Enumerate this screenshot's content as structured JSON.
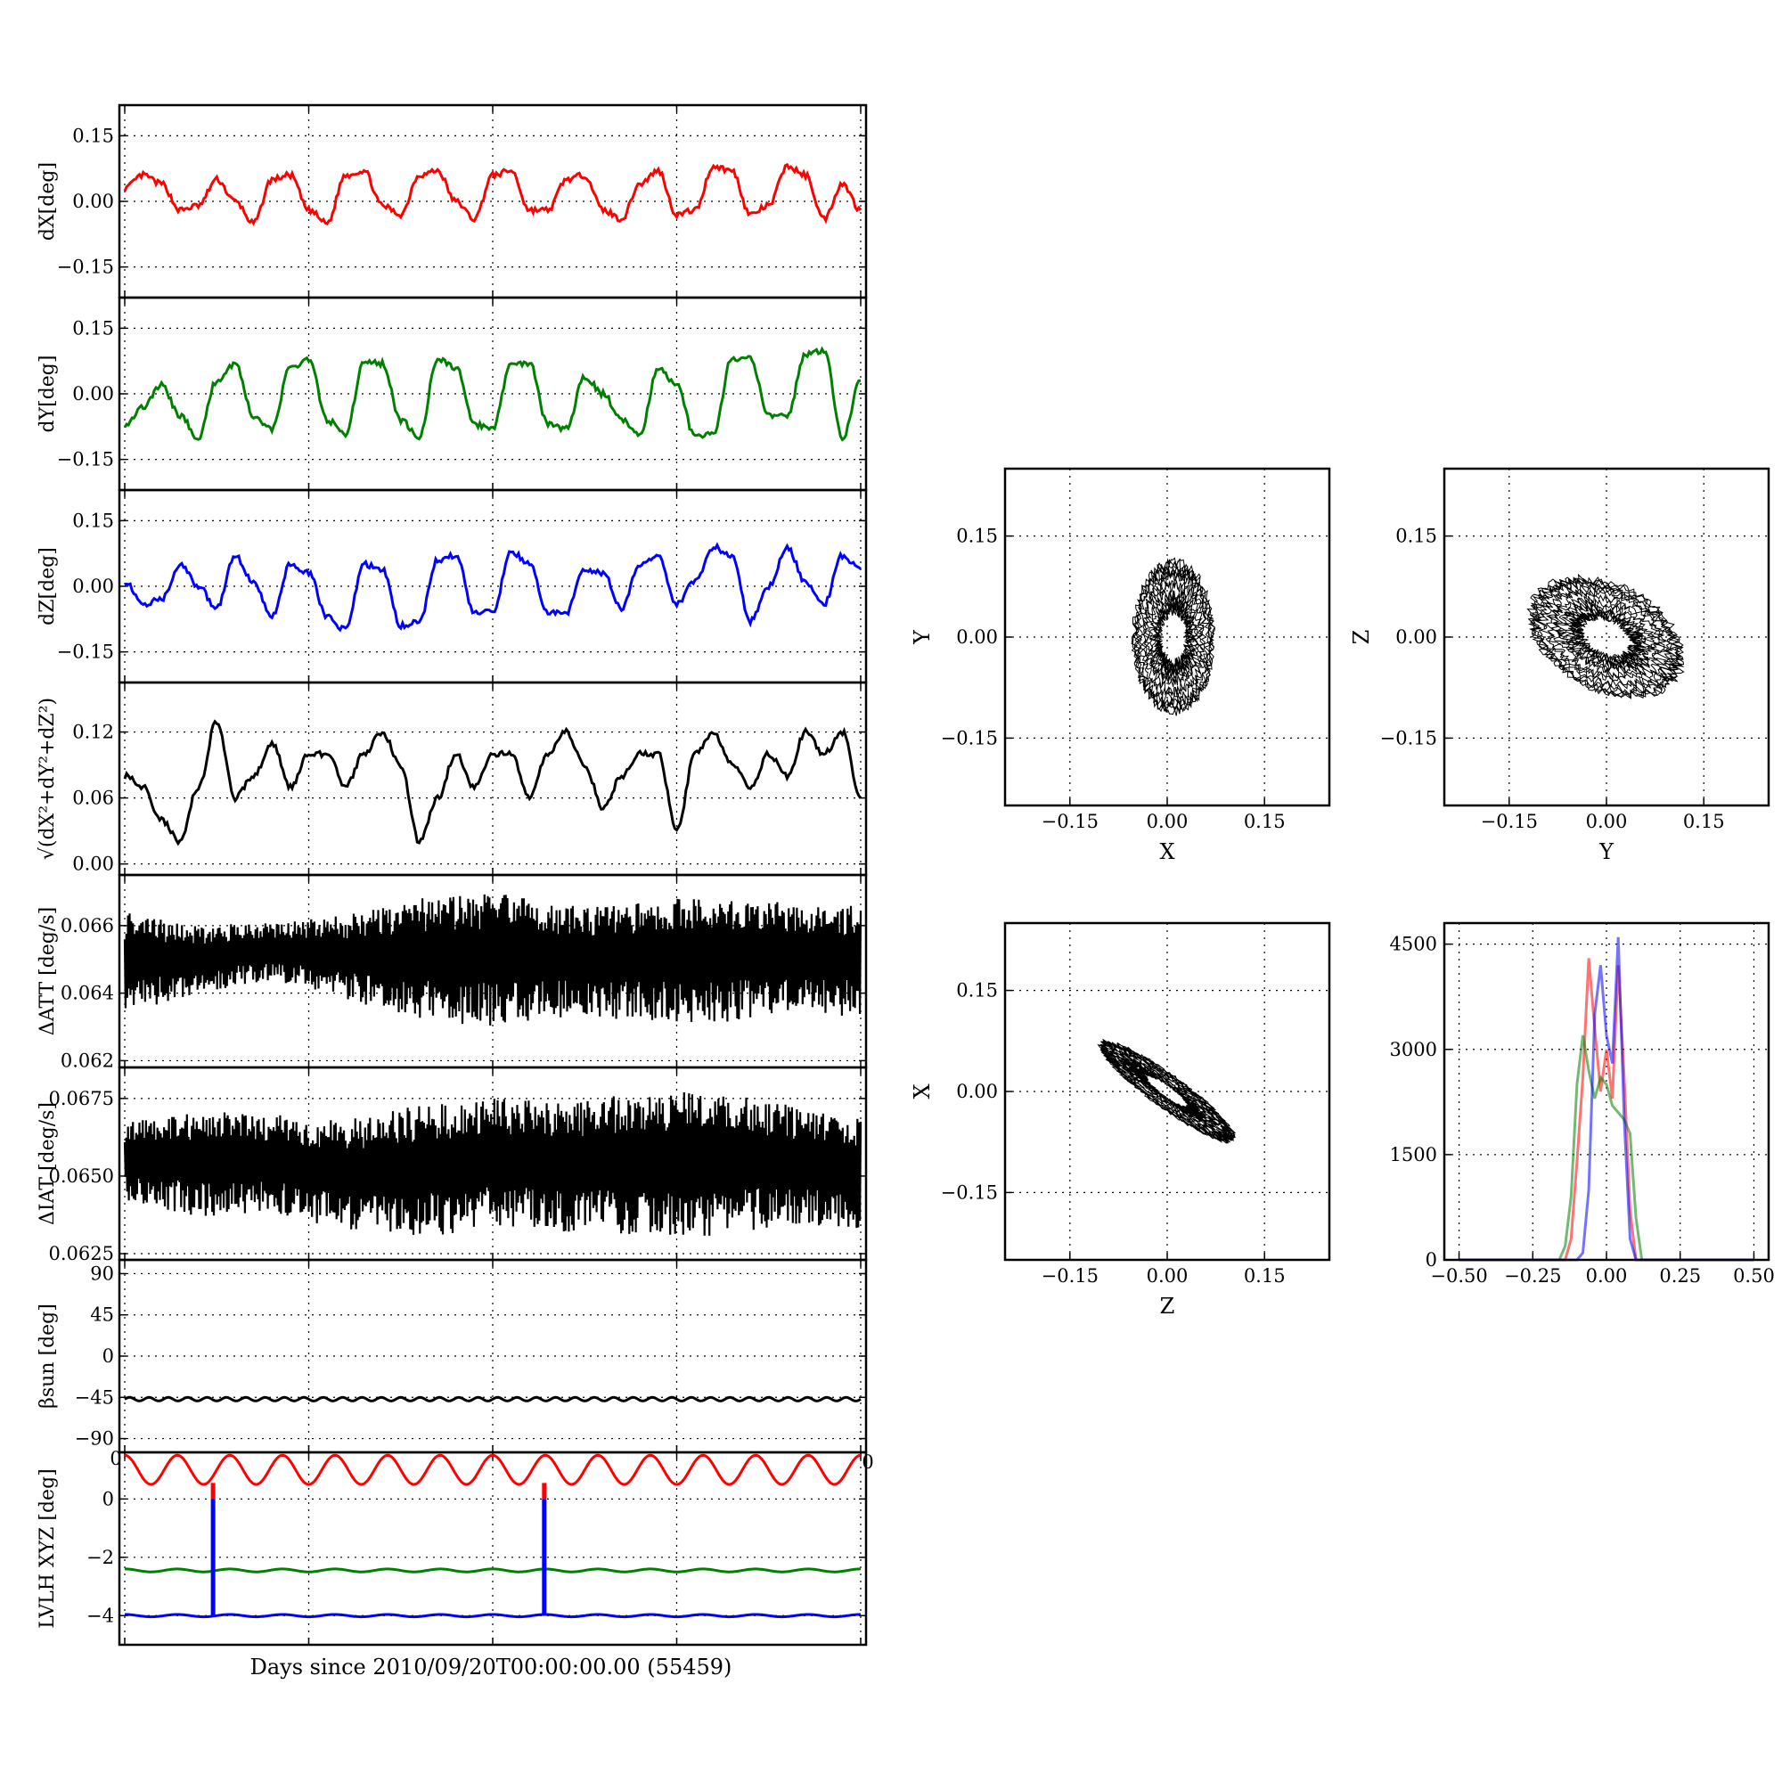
{
  "figure": {
    "xlabel": "Days since 2010/09/20T00:00:00.00 (55459)",
    "edge_tick_labels": [
      "0",
      "0",
      "0"
    ]
  },
  "chart_data": [
    {
      "type": "line",
      "id": "dX",
      "ylabel": "dX[deg]",
      "ylim": [
        -0.22,
        0.22
      ],
      "yticks": [
        0.15,
        0.0,
        -0.15
      ],
      "ytick_labels": [
        "0.15",
        "0.00",
        "−0.15"
      ],
      "grid": true,
      "color": "#ff0000",
      "x": [
        0,
        0.5,
        1,
        1.5,
        2,
        2.5,
        3,
        3.5,
        4,
        4.5,
        5,
        5.5,
        6,
        6.5,
        7,
        7.5,
        8,
        8.5,
        9,
        9.5,
        10,
        10.5,
        11,
        11.5,
        12,
        12.5,
        13,
        13.5,
        14,
        14.5,
        15,
        15.5,
        16,
        16.5,
        17,
        17.5,
        18,
        18.5,
        19,
        19.5,
        20
      ],
      "series": [
        {
          "values": [
            0.03,
            0.06,
            0.04,
            -0.02,
            -0.01,
            0.05,
            0.0,
            -0.05,
            0.05,
            0.06,
            -0.02,
            -0.05,
            0.06,
            0.07,
            -0.01,
            -0.03,
            0.06,
            0.07,
            0.0,
            -0.04,
            0.06,
            0.07,
            -0.02,
            -0.02,
            0.05,
            0.06,
            -0.02,
            -0.04,
            0.04,
            0.07,
            -0.03,
            -0.02,
            0.08,
            0.07,
            -0.03,
            -0.01,
            0.08,
            0.06,
            -0.04,
            0.04,
            -0.02
          ]
        }
      ]
    },
    {
      "type": "line",
      "id": "dY",
      "ylabel": "dY[deg]",
      "ylim": [
        -0.22,
        0.22
      ],
      "yticks": [
        0.15,
        0.0,
        -0.15
      ],
      "ytick_labels": [
        "0.15",
        "0.00",
        "−0.15"
      ],
      "grid": true,
      "color": "#008000",
      "x": [
        0,
        0.5,
        1,
        1.5,
        2,
        2.5,
        3,
        3.5,
        4,
        4.5,
        5,
        5.5,
        6,
        6.5,
        7,
        7.5,
        8,
        8.5,
        9,
        9.5,
        10,
        10.5,
        11,
        11.5,
        12,
        12.5,
        13,
        13.5,
        14,
        14.5,
        15,
        15.5,
        16,
        16.5,
        17,
        17.5,
        18,
        18.5,
        19,
        19.5,
        20
      ],
      "series": [
        {
          "values": [
            -0.07,
            -0.03,
            0.02,
            -0.05,
            -0.1,
            0.03,
            0.07,
            -0.05,
            -0.08,
            0.06,
            0.08,
            -0.06,
            -0.09,
            0.07,
            0.07,
            -0.06,
            -0.1,
            0.08,
            0.06,
            -0.07,
            -0.08,
            0.07,
            0.07,
            -0.07,
            -0.08,
            0.04,
            0.0,
            -0.06,
            -0.09,
            0.06,
            0.02,
            -0.1,
            -0.09,
            0.08,
            0.08,
            -0.05,
            -0.05,
            0.09,
            0.1,
            -0.1,
            0.03
          ]
        }
      ]
    },
    {
      "type": "line",
      "id": "dZ",
      "ylabel": "dZ[deg]",
      "ylim": [
        -0.22,
        0.22
      ],
      "yticks": [
        0.15,
        0.0,
        -0.15
      ],
      "ytick_labels": [
        "0.15",
        "0.00",
        "−0.15"
      ],
      "grid": true,
      "color": "#0000ff",
      "x": [
        0,
        0.5,
        1,
        1.5,
        2,
        2.5,
        3,
        3.5,
        4,
        4.5,
        5,
        5.5,
        6,
        6.5,
        7,
        7.5,
        8,
        8.5,
        9,
        9.5,
        10,
        10.5,
        11,
        11.5,
        12,
        12.5,
        13,
        13.5,
        14,
        14.5,
        15,
        15.5,
        16,
        16.5,
        17,
        17.5,
        18,
        18.5,
        19,
        19.5,
        20
      ],
      "series": [
        {
          "values": [
            0.01,
            -0.04,
            -0.03,
            0.05,
            0.0,
            -0.05,
            0.07,
            0.01,
            -0.07,
            0.05,
            0.03,
            -0.07,
            -0.1,
            0.05,
            0.04,
            -0.09,
            -0.08,
            0.06,
            0.07,
            -0.06,
            -0.06,
            0.08,
            0.05,
            -0.06,
            -0.06,
            0.04,
            0.03,
            -0.05,
            0.05,
            0.07,
            -0.04,
            0.01,
            0.09,
            0.07,
            -0.08,
            0.0,
            0.09,
            0.01,
            -0.04,
            0.07,
            0.04
          ]
        }
      ]
    },
    {
      "type": "line",
      "id": "mag",
      "ylabel": "√(dX²+dY²+dZ²)",
      "ylim": [
        -0.01,
        0.165
      ],
      "yticks": [
        0.12,
        0.06,
        0.0
      ],
      "ytick_labels": [
        "0.12",
        "0.06",
        "0.00"
      ],
      "grid": true,
      "color": "#000000",
      "x": [
        0,
        0.5,
        1,
        1.5,
        2,
        2.5,
        3,
        3.5,
        4,
        4.5,
        5,
        5.5,
        6,
        6.5,
        7,
        7.5,
        8,
        8.5,
        9,
        9.5,
        10,
        10.5,
        11,
        11.5,
        12,
        12.5,
        13,
        13.5,
        14,
        14.5,
        15,
        15.5,
        16,
        16.5,
        17,
        17.5,
        18,
        18.5,
        19,
        19.5,
        20
      ],
      "series": [
        {
          "values": [
            0.08,
            0.07,
            0.04,
            0.02,
            0.07,
            0.13,
            0.06,
            0.08,
            0.11,
            0.07,
            0.1,
            0.1,
            0.07,
            0.1,
            0.12,
            0.09,
            0.02,
            0.06,
            0.1,
            0.07,
            0.1,
            0.1,
            0.06,
            0.1,
            0.12,
            0.09,
            0.05,
            0.08,
            0.1,
            0.1,
            0.03,
            0.1,
            0.12,
            0.09,
            0.07,
            0.1,
            0.08,
            0.12,
            0.1,
            0.12,
            0.06
          ]
        }
      ]
    },
    {
      "type": "line",
      "id": "dATT",
      "ylabel": "ΔATT [deg/s]",
      "ylim": [
        0.0618,
        0.0675
      ],
      "yticks": [
        0.066,
        0.064,
        0.062
      ],
      "ytick_labels": [
        "0.066",
        "0.064",
        "0.062"
      ],
      "grid": true,
      "color": "#000000",
      "envelope_x": [
        0,
        2,
        4,
        6,
        8,
        10,
        12,
        14,
        16,
        18,
        20
      ],
      "upper": [
        0.0664,
        0.066,
        0.0661,
        0.0663,
        0.0668,
        0.067,
        0.0666,
        0.0667,
        0.0669,
        0.0667,
        0.0666
      ],
      "lower": [
        0.0634,
        0.064,
        0.0644,
        0.0638,
        0.0632,
        0.063,
        0.0633,
        0.0632,
        0.0631,
        0.0634,
        0.0633
      ]
    },
    {
      "type": "line",
      "id": "dIAT",
      "ylabel": "ΔIAT [deg/s]",
      "ylim": [
        0.0623,
        0.0685
      ],
      "yticks": [
        0.0675,
        0.065,
        0.0625
      ],
      "ytick_labels": [
        "0.0675",
        "0.0650",
        "0.0625"
      ],
      "grid": true,
      "color": "#000000",
      "envelope_x": [
        0,
        2,
        4,
        6,
        8,
        10,
        12,
        14,
        16,
        18,
        20
      ],
      "upper": [
        0.0668,
        0.0671,
        0.067,
        0.0668,
        0.0673,
        0.0675,
        0.0674,
        0.0677,
        0.0678,
        0.0673,
        0.0669
      ],
      "lower": [
        0.0642,
        0.0637,
        0.0638,
        0.0632,
        0.063,
        0.0633,
        0.0632,
        0.0631,
        0.063,
        0.0634,
        0.0633
      ]
    },
    {
      "type": "line",
      "id": "beta_sun",
      "ylabel": "βsun [deg]",
      "ylim": [
        -105,
        105
      ],
      "yticks": [
        90,
        45,
        0,
        -45,
        -90
      ],
      "ytick_labels": [
        "90",
        "45",
        "0",
        "−45",
        "−90"
      ],
      "grid": true,
      "color": "#000000",
      "series": [
        {
          "mean": -47,
          "ripple_amplitude": 2,
          "cycles": 38
        }
      ]
    },
    {
      "type": "line",
      "id": "lvlh",
      "ylabel": "LVLH XYZ [deg]",
      "ylim": [
        -5.0,
        1.6
      ],
      "yticks": [
        0,
        -2,
        -4
      ],
      "ytick_labels": [
        "0",
        "−2",
        "−4"
      ],
      "grid": true,
      "series": [
        {
          "name": "X",
          "color": "#ff0000",
          "mean": 1.0,
          "amplitude": 0.5,
          "cycles": 14
        },
        {
          "name": "Y",
          "color": "#008000",
          "mean": -2.45,
          "amplitude": 0.05,
          "cycles": 14
        },
        {
          "name": "Z",
          "color": "#0000ff",
          "mean": -4.0,
          "amplitude": 0.04,
          "cycles": 14
        }
      ],
      "spike_days": [
        2.4,
        11.4
      ]
    },
    {
      "type": "scatter",
      "id": "XY",
      "xlabel": "X",
      "ylabel": "Y",
      "xlim": [
        -0.25,
        0.25
      ],
      "ylim": [
        -0.25,
        0.25
      ],
      "xticks": [
        -0.15,
        0.0,
        0.15
      ],
      "yticks": [
        0.15,
        0.0,
        -0.15
      ],
      "xtick_labels": [
        "−0.15",
        "0.00",
        "0.15"
      ],
      "ytick_labels": [
        "0.15",
        "0.00",
        "−0.15"
      ],
      "grid": true,
      "color": "#000000",
      "trace": {
        "x_center": 0.01,
        "y_center": 0.0,
        "x_radius": 0.055,
        "y_radius": 0.1,
        "tilt_deg": 0
      }
    },
    {
      "type": "scatter",
      "id": "YZ",
      "xlabel": "Y",
      "ylabel": "Z",
      "xlim": [
        -0.25,
        0.25
      ],
      "ylim": [
        -0.25,
        0.25
      ],
      "xticks": [
        -0.15,
        0.0,
        0.15
      ],
      "yticks": [
        0.15,
        0.0,
        -0.15
      ],
      "xtick_labels": [
        "−0.15",
        "0.00",
        "0.15"
      ],
      "ytick_labels": [
        "0.15",
        "0.00",
        "−0.15"
      ],
      "grid": true,
      "color": "#000000",
      "trace": {
        "x_center": 0.0,
        "y_center": 0.0,
        "x_radius": 0.11,
        "y_radius": 0.07,
        "tilt_deg": -25
      }
    },
    {
      "type": "scatter",
      "id": "ZX",
      "xlabel": "Z",
      "ylabel": "X",
      "xlim": [
        -0.25,
        0.25
      ],
      "ylim": [
        -0.25,
        0.25
      ],
      "xticks": [
        -0.15,
        0.0,
        0.15
      ],
      "yticks": [
        0.15,
        0.0,
        -0.15
      ],
      "xtick_labels": [
        "−0.15",
        "0.00",
        "0.15"
      ],
      "ytick_labels": [
        "0.15",
        "0.00",
        "−0.15"
      ],
      "grid": true,
      "color": "#000000",
      "trace": {
        "x_center": 0.0,
        "y_center": 0.0,
        "x_radius": 0.11,
        "y_radius": 0.022,
        "tilt_deg": -35
      }
    },
    {
      "type": "line",
      "id": "hist",
      "xlim": [
        -0.55,
        0.55
      ],
      "ylim": [
        0,
        4800
      ],
      "xticks": [
        -0.5,
        -0.25,
        0.0,
        0.25,
        0.5
      ],
      "yticks": [
        4500,
        3000,
        1500,
        0
      ],
      "xtick_labels": [
        "−0.50",
        "−0.25",
        "0.00",
        "0.25",
        "0.50"
      ],
      "ytick_labels": [
        "4500",
        "3000",
        "1500",
        "0"
      ],
      "grid": true,
      "x": [
        -0.16,
        -0.14,
        -0.12,
        -0.1,
        -0.08,
        -0.06,
        -0.04,
        -0.02,
        0.0,
        0.02,
        0.04,
        0.06,
        0.08,
        0.1,
        0.12,
        0.14
      ],
      "series": [
        {
          "color": "#ff0000",
          "values": [
            0,
            0,
            300,
            1400,
            2600,
            4300,
            3300,
            2400,
            3000,
            2300,
            4200,
            2600,
            700,
            0,
            0,
            0
          ]
        },
        {
          "color": "#008000",
          "values": [
            0,
            200,
            900,
            2500,
            3200,
            2700,
            2300,
            2600,
            2500,
            2200,
            2100,
            2000,
            1800,
            600,
            0,
            0
          ]
        },
        {
          "color": "#0000ff",
          "values": [
            0,
            0,
            0,
            0,
            100,
            1000,
            3500,
            4200,
            3200,
            2800,
            4600,
            2000,
            300,
            0,
            0,
            0
          ]
        }
      ]
    }
  ]
}
